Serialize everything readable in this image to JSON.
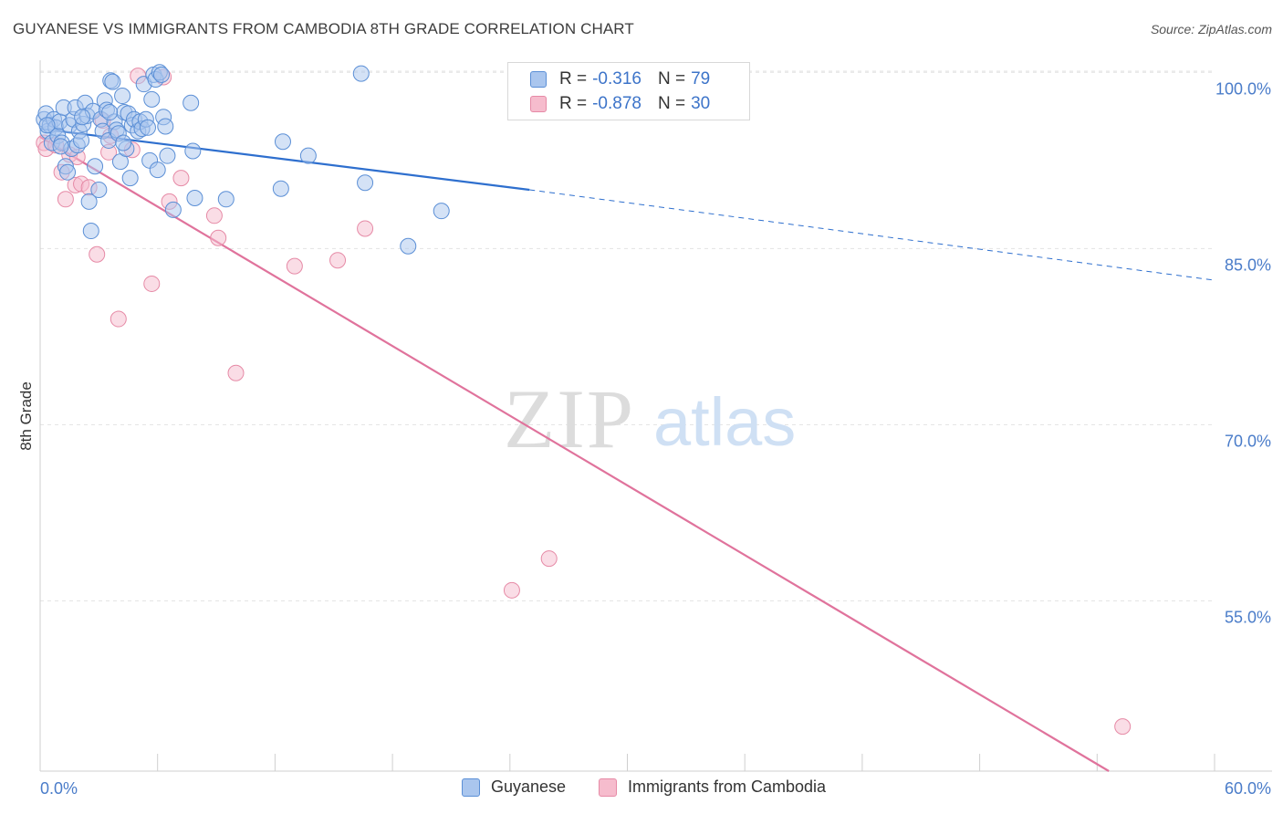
{
  "title": "GUYANESE VS IMMIGRANTS FROM CAMBODIA 8TH GRADE CORRELATION CHART",
  "source": "Source: ZipAtlas.com",
  "watermark": {
    "zip": "ZIP",
    "atlas": "atlas"
  },
  "legend": {
    "rows": [
      {
        "r_label": "R =",
        "r_value": "-0.316",
        "n_label": "N =",
        "n_value": "79"
      },
      {
        "r_label": "R =",
        "r_value": "-0.878",
        "n_label": "N =",
        "n_value": "30"
      }
    ]
  },
  "colors": {
    "guyanese_fill": "#aac6ee",
    "guyanese_stroke": "#5b8fd6",
    "guyanese_line": "#2e6fce",
    "cambodia_fill": "#f6bccd",
    "cambodia_stroke": "#e68aa6",
    "cambodia_line": "#e0739c",
    "axis_text": "#4a7cc9",
    "grid": "#e3e3e3"
  },
  "chart_data": {
    "type": "scatter",
    "title": "GUYANESE VS IMMIGRANTS FROM CAMBODIA 8TH GRADE CORRELATION CHART",
    "xlabel": "",
    "ylabel": "8th Grade",
    "xlim": [
      0,
      60
    ],
    "ylim": [
      40.5,
      101.5
    ],
    "x_tick_labels": [
      "0.0%",
      "60.0%"
    ],
    "y_ticks": [
      100,
      85,
      70,
      55
    ],
    "y_tick_labels": [
      "100.0%",
      "85.0%",
      "70.0%",
      "55.0%"
    ],
    "grid": true,
    "series": [
      {
        "name": "Guyanese",
        "R": -0.316,
        "N": 79,
        "trend": {
          "x": [
            0,
            25
          ],
          "y": [
            95.2,
            90.0
          ],
          "dashed_to_x": 60,
          "dashed_y_end": 82.3
        },
        "points": [
          [
            0.2,
            96.0
          ],
          [
            0.3,
            96.5
          ],
          [
            0.4,
            95.0
          ],
          [
            0.5,
            95.5
          ],
          [
            0.6,
            94.0
          ],
          [
            0.7,
            96.0
          ],
          [
            0.8,
            95.3
          ],
          [
            0.9,
            94.6
          ],
          [
            1.0,
            95.8
          ],
          [
            1.1,
            94.0
          ],
          [
            1.2,
            97.0
          ],
          [
            1.3,
            92.0
          ],
          [
            1.4,
            91.5
          ],
          [
            1.5,
            95.5
          ],
          [
            1.6,
            93.5
          ],
          [
            1.7,
            96.0
          ],
          [
            1.8,
            97.0
          ],
          [
            1.9,
            93.8
          ],
          [
            2.0,
            95.0
          ],
          [
            2.1,
            94.2
          ],
          [
            2.2,
            95.6
          ],
          [
            2.3,
            97.4
          ],
          [
            2.4,
            96.3
          ],
          [
            2.5,
            89.0
          ],
          [
            2.6,
            86.5
          ],
          [
            2.7,
            96.7
          ],
          [
            2.8,
            92.0
          ],
          [
            3.0,
            90.0
          ],
          [
            3.1,
            96.0
          ],
          [
            3.2,
            95.0
          ],
          [
            3.3,
            97.6
          ],
          [
            3.4,
            96.8
          ],
          [
            3.5,
            94.2
          ],
          [
            3.6,
            99.3
          ],
          [
            3.7,
            99.2
          ],
          [
            3.8,
            95.8
          ],
          [
            3.9,
            95.1
          ],
          [
            4.0,
            94.8
          ],
          [
            4.1,
            92.4
          ],
          [
            4.2,
            98.0
          ],
          [
            4.3,
            96.6
          ],
          [
            4.4,
            93.5
          ],
          [
            4.5,
            96.5
          ],
          [
            4.6,
            91.0
          ],
          [
            4.7,
            95.5
          ],
          [
            4.8,
            96.0
          ],
          [
            5.0,
            95.0
          ],
          [
            5.1,
            95.8
          ],
          [
            5.2,
            95.2
          ],
          [
            5.3,
            99.0
          ],
          [
            5.4,
            96.0
          ],
          [
            5.5,
            95.3
          ],
          [
            5.6,
            92.5
          ],
          [
            5.7,
            97.7
          ],
          [
            5.8,
            99.8
          ],
          [
            5.9,
            99.4
          ],
          [
            6.0,
            91.7
          ],
          [
            6.1,
            100.0
          ],
          [
            6.2,
            99.8
          ],
          [
            6.3,
            96.2
          ],
          [
            6.4,
            95.4
          ],
          [
            6.5,
            92.9
          ],
          [
            6.8,
            88.3
          ],
          [
            7.7,
            97.4
          ],
          [
            7.8,
            93.3
          ],
          [
            7.9,
            89.3
          ],
          [
            9.5,
            89.2
          ],
          [
            12.3,
            90.1
          ],
          [
            12.4,
            94.1
          ],
          [
            13.7,
            92.9
          ],
          [
            16.4,
            99.9
          ],
          [
            16.6,
            90.6
          ],
          [
            18.8,
            85.2
          ],
          [
            20.5,
            88.2
          ],
          [
            0.35,
            95.5
          ],
          [
            1.05,
            93.7
          ],
          [
            2.15,
            96.2
          ],
          [
            3.55,
            96.6
          ],
          [
            4.25,
            94.0
          ]
        ]
      },
      {
        "name": "Immigrants from Cambodia",
        "R": -0.878,
        "N": 30,
        "trend": {
          "x": [
            0,
            54.6
          ],
          "y": [
            94.5,
            40.5
          ]
        },
        "points": [
          [
            0.2,
            94.0
          ],
          [
            0.3,
            93.5
          ],
          [
            0.8,
            93.8
          ],
          [
            1.1,
            91.5
          ],
          [
            1.3,
            89.2
          ],
          [
            1.5,
            93.0
          ],
          [
            1.8,
            90.4
          ],
          [
            2.1,
            90.5
          ],
          [
            2.5,
            90.2
          ],
          [
            2.9,
            84.5
          ],
          [
            3.2,
            95.9
          ],
          [
            3.5,
            93.2
          ],
          [
            3.6,
            94.6
          ],
          [
            4.0,
            79.0
          ],
          [
            4.7,
            93.4
          ],
          [
            5.0,
            99.7
          ],
          [
            5.7,
            82.0
          ],
          [
            6.3,
            99.6
          ],
          [
            6.6,
            89.0
          ],
          [
            7.2,
            91.0
          ],
          [
            8.9,
            87.8
          ],
          [
            9.1,
            85.9
          ],
          [
            10.0,
            74.4
          ],
          [
            13.0,
            83.5
          ],
          [
            15.2,
            84.0
          ],
          [
            16.6,
            86.7
          ],
          [
            24.1,
            55.9
          ],
          [
            26.0,
            58.6
          ],
          [
            55.3,
            44.3
          ],
          [
            1.9,
            92.8
          ]
        ]
      }
    ]
  },
  "bottom_legend": [
    "Guyanese",
    "Immigrants from Cambodia"
  ]
}
